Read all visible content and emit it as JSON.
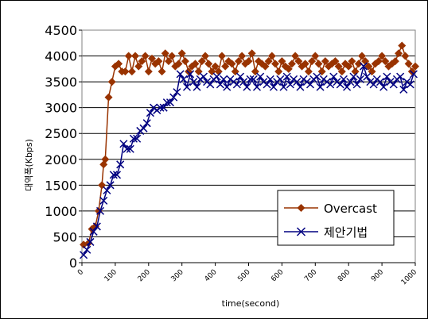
{
  "chart_data": {
    "type": "line",
    "title": "",
    "xlabel": "time(second)",
    "ylabel": "대역폭(Kbps)",
    "xlim": [
      0,
      1000
    ],
    "ylim": [
      0,
      4500
    ],
    "x_ticks": [
      "0",
      "100",
      "200",
      "300",
      "400",
      "500",
      "600",
      "700",
      "800",
      "900",
      "1000"
    ],
    "y_ticks": [
      "0",
      "500",
      "1000",
      "1500",
      "2000",
      "2500",
      "3000",
      "3500",
      "4000",
      "4500"
    ],
    "grid": "horizontal",
    "legend_position": "lower-right",
    "series": [
      {
        "name": "Overcast",
        "color": "#993300",
        "marker": "diamond",
        "x": [
          5,
          20,
          30,
          40,
          50,
          60,
          65,
          70,
          80,
          90,
          100,
          110,
          120,
          130,
          140,
          150,
          160,
          170,
          180,
          190,
          200,
          210,
          220,
          230,
          240,
          250,
          260,
          270,
          280,
          290,
          300,
          310,
          320,
          330,
          340,
          350,
          360,
          370,
          380,
          390,
          400,
          410,
          420,
          430,
          440,
          450,
          460,
          470,
          480,
          490,
          500,
          510,
          520,
          530,
          540,
          550,
          560,
          570,
          580,
          590,
          600,
          610,
          620,
          630,
          640,
          650,
          660,
          670,
          680,
          690,
          700,
          710,
          720,
          730,
          740,
          750,
          760,
          770,
          780,
          790,
          800,
          810,
          820,
          830,
          840,
          850,
          860,
          870,
          880,
          890,
          900,
          910,
          920,
          930,
          940,
          950,
          960,
          970,
          980,
          990,
          1000
        ],
        "values": [
          350,
          380,
          650,
          700,
          1000,
          1500,
          1900,
          2000,
          3200,
          3500,
          3800,
          3850,
          3700,
          3700,
          4000,
          3700,
          4000,
          3800,
          3900,
          4000,
          3700,
          3950,
          3850,
          3900,
          3700,
          4050,
          3900,
          4000,
          3800,
          3850,
          4050,
          3900,
          3700,
          3800,
          3850,
          3700,
          3900,
          4000,
          3850,
          3700,
          3800,
          3700,
          4000,
          3800,
          3900,
          3850,
          3700,
          3900,
          4000,
          3850,
          3900,
          4050,
          3700,
          3900,
          3850,
          3800,
          3900,
          4000,
          3850,
          3700,
          3900,
          3800,
          3750,
          3850,
          4000,
          3900,
          3800,
          3850,
          3700,
          3900,
          4000,
          3850,
          3700,
          3900,
          3800,
          3850,
          3900,
          3800,
          3700,
          3850,
          3800,
          3900,
          3700,
          3850,
          4000,
          3900,
          3800,
          3700,
          3850,
          3900,
          4000,
          3900,
          3800,
          3850,
          3900,
          4050,
          4200,
          4000,
          3850,
          3700,
          3800
        ]
      },
      {
        "name": "제안기법",
        "color": "#000080",
        "marker": "x",
        "x": [
          5,
          15,
          25,
          35,
          45,
          55,
          65,
          75,
          85,
          95,
          105,
          115,
          125,
          135,
          145,
          155,
          165,
          175,
          185,
          195,
          205,
          215,
          225,
          235,
          245,
          255,
          265,
          275,
          285,
          295,
          305,
          315,
          325,
          335,
          345,
          355,
          365,
          375,
          385,
          395,
          405,
          415,
          425,
          435,
          445,
          455,
          465,
          475,
          485,
          495,
          505,
          515,
          525,
          535,
          545,
          555,
          565,
          575,
          585,
          595,
          605,
          615,
          625,
          635,
          645,
          655,
          665,
          675,
          685,
          695,
          705,
          715,
          725,
          735,
          745,
          755,
          765,
          775,
          785,
          795,
          805,
          815,
          825,
          835,
          845,
          855,
          865,
          875,
          885,
          895,
          905,
          915,
          925,
          935,
          945,
          955,
          965,
          975,
          985,
          995
        ],
        "values": [
          150,
          250,
          400,
          600,
          700,
          1000,
          1200,
          1400,
          1500,
          1700,
          1700,
          1900,
          2300,
          2200,
          2200,
          2400,
          2400,
          2550,
          2600,
          2700,
          2900,
          3000,
          2950,
          3000,
          3000,
          3100,
          3100,
          3200,
          3300,
          3650,
          3550,
          3400,
          3650,
          3500,
          3400,
          3550,
          3600,
          3500,
          3450,
          3550,
          3600,
          3450,
          3550,
          3400,
          3550,
          3500,
          3450,
          3600,
          3500,
          3400,
          3550,
          3550,
          3400,
          3600,
          3500,
          3450,
          3550,
          3400,
          3500,
          3550,
          3400,
          3600,
          3450,
          3550,
          3500,
          3400,
          3550,
          3500,
          3450,
          3550,
          3600,
          3400,
          3550,
          3500,
          3450,
          3600,
          3500,
          3450,
          3550,
          3400,
          3500,
          3600,
          3450,
          3550,
          3800,
          3600,
          3500,
          3450,
          3550,
          3500,
          3400,
          3600,
          3500,
          3450,
          3550,
          3600,
          3350,
          3500,
          3450,
          3650
        ]
      }
    ]
  }
}
